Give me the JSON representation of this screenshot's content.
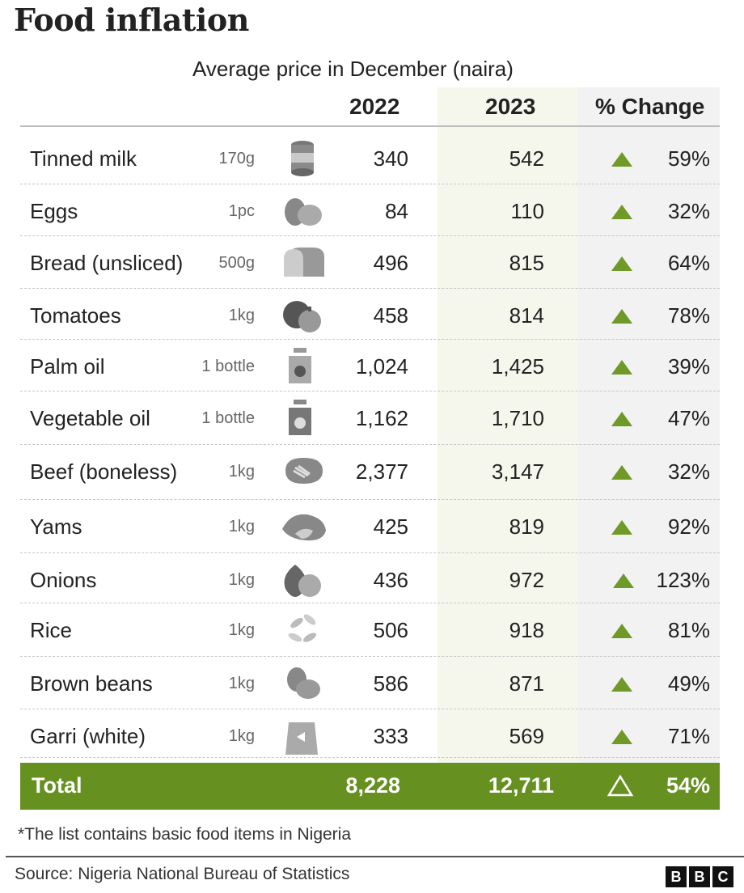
{
  "title": "Food inflation",
  "subtitle": "Average price in December (naira)",
  "headers": {
    "y2022": "2022",
    "y2023": "2023",
    "change": "% Change"
  },
  "chart_data": {
    "type": "table",
    "columns": [
      "",
      "",
      "2022",
      "2023",
      "% Change"
    ],
    "rows": [
      {
        "item": "Tinned milk",
        "unit": "170g",
        "icon": "tinned-milk-icon",
        "v2022": "340",
        "v2023": "542",
        "change": "59%"
      },
      {
        "item": "Eggs",
        "unit": "1pc",
        "icon": "eggs-icon",
        "v2022": "84",
        "v2023": "110",
        "change": "32%"
      },
      {
        "item": "Bread (unsliced)",
        "unit": "500g",
        "icon": "bread-icon",
        "v2022": "496",
        "v2023": "815",
        "change": "64%"
      },
      {
        "item": "Tomatoes",
        "unit": "1kg",
        "icon": "tomatoes-icon",
        "v2022": "458",
        "v2023": "814",
        "change": "78%"
      },
      {
        "item": "Palm oil",
        "unit": "1 bottle",
        "icon": "palm-oil-icon",
        "v2022": "1,024",
        "v2023": "1,425",
        "change": "39%"
      },
      {
        "item": "Vegetable oil",
        "unit": "1 bottle",
        "icon": "vegetable-oil-icon",
        "v2022": "1,162",
        "v2023": "1,710",
        "change": "47%"
      },
      {
        "item": "Beef (boneless)",
        "unit": "1kg",
        "icon": "beef-icon",
        "v2022": "2,377",
        "v2023": "3,147",
        "change": "32%"
      },
      {
        "item": "Yams",
        "unit": "1kg",
        "icon": "yams-icon",
        "v2022": "425",
        "v2023": "819",
        "change": "92%"
      },
      {
        "item": "Onions",
        "unit": "1kg",
        "icon": "onions-icon",
        "v2022": "436",
        "v2023": "972",
        "change": "123%"
      },
      {
        "item": "Rice",
        "unit": "1kg",
        "icon": "rice-icon",
        "v2022": "506",
        "v2023": "918",
        "change": "81%"
      },
      {
        "item": "Brown beans",
        "unit": "1kg",
        "icon": "brown-beans-icon",
        "v2022": "586",
        "v2023": "871",
        "change": "49%"
      },
      {
        "item": "Garri (white)",
        "unit": "1kg",
        "icon": "garri-icon",
        "v2022": "333",
        "v2023": "569",
        "change": "71%"
      }
    ],
    "total": {
      "label": "Total",
      "v2022": "8,228",
      "v2023": "12,711",
      "change": "54%"
    }
  },
  "colors": {
    "accent_green": "#66901f",
    "triangle_green": "#6f9a27",
    "highlight_2023": "#f6f7ec",
    "highlight_change": "#f2f2f2"
  },
  "note": "*The list contains basic food items in Nigeria",
  "source": "Source: Nigeria National Bureau of Statistics",
  "logo": [
    "B",
    "B",
    "C"
  ]
}
